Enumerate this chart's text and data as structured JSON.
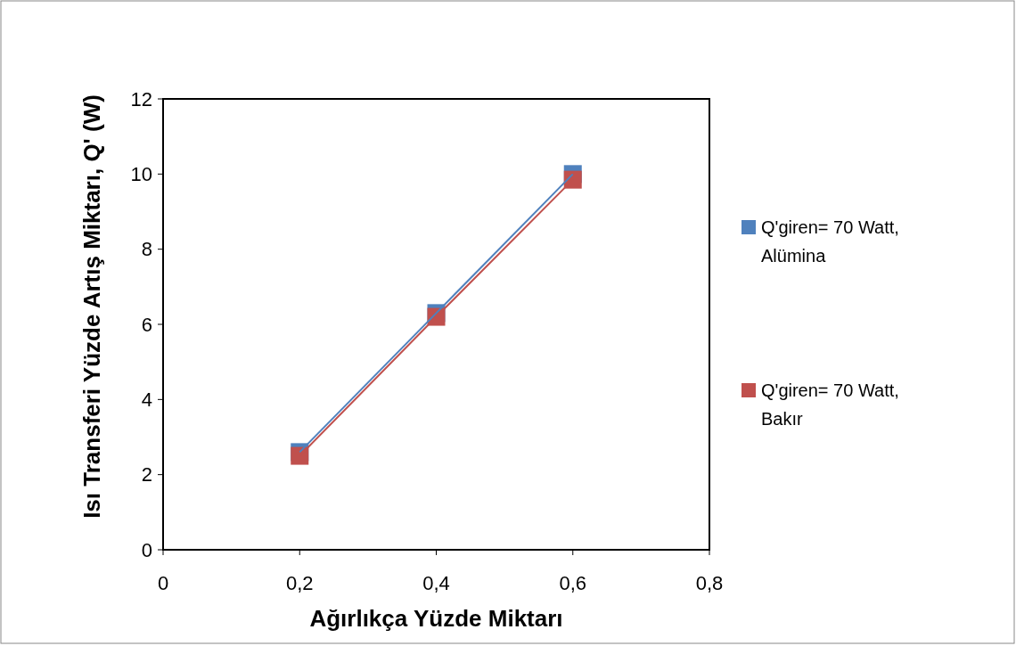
{
  "chart_data": {
    "type": "line",
    "xlabel": "Ağırlıkça Yüzde Miktarı",
    "ylabel": "Isı Transferi Yüzde Artış Miktarı, Q' (W)",
    "x": [
      0.2,
      0.4,
      0.6
    ],
    "series": [
      {
        "name": "Q'giren= 70 Watt, Alümina",
        "color": "#4f81bd",
        "values": [
          2.6,
          6.3,
          10.0
        ]
      },
      {
        "name": "Q'giren= 70 Watt, Bakır",
        "color": "#c0504d",
        "values": [
          2.5,
          6.2,
          9.85
        ]
      }
    ],
    "xlim": [
      0,
      0.8
    ],
    "xticks": [
      {
        "value": 0,
        "label": "0"
      },
      {
        "value": 0.2,
        "label": "0,2"
      },
      {
        "value": 0.4,
        "label": "0,4"
      },
      {
        "value": 0.6,
        "label": "0,6"
      },
      {
        "value": 0.8,
        "label": "0,8"
      }
    ],
    "ylim": [
      0,
      12
    ],
    "yticks": [
      0,
      2,
      4,
      6,
      8,
      10,
      12
    ],
    "grid": false,
    "legend": "right",
    "marker": "square",
    "line_style": "solid"
  }
}
